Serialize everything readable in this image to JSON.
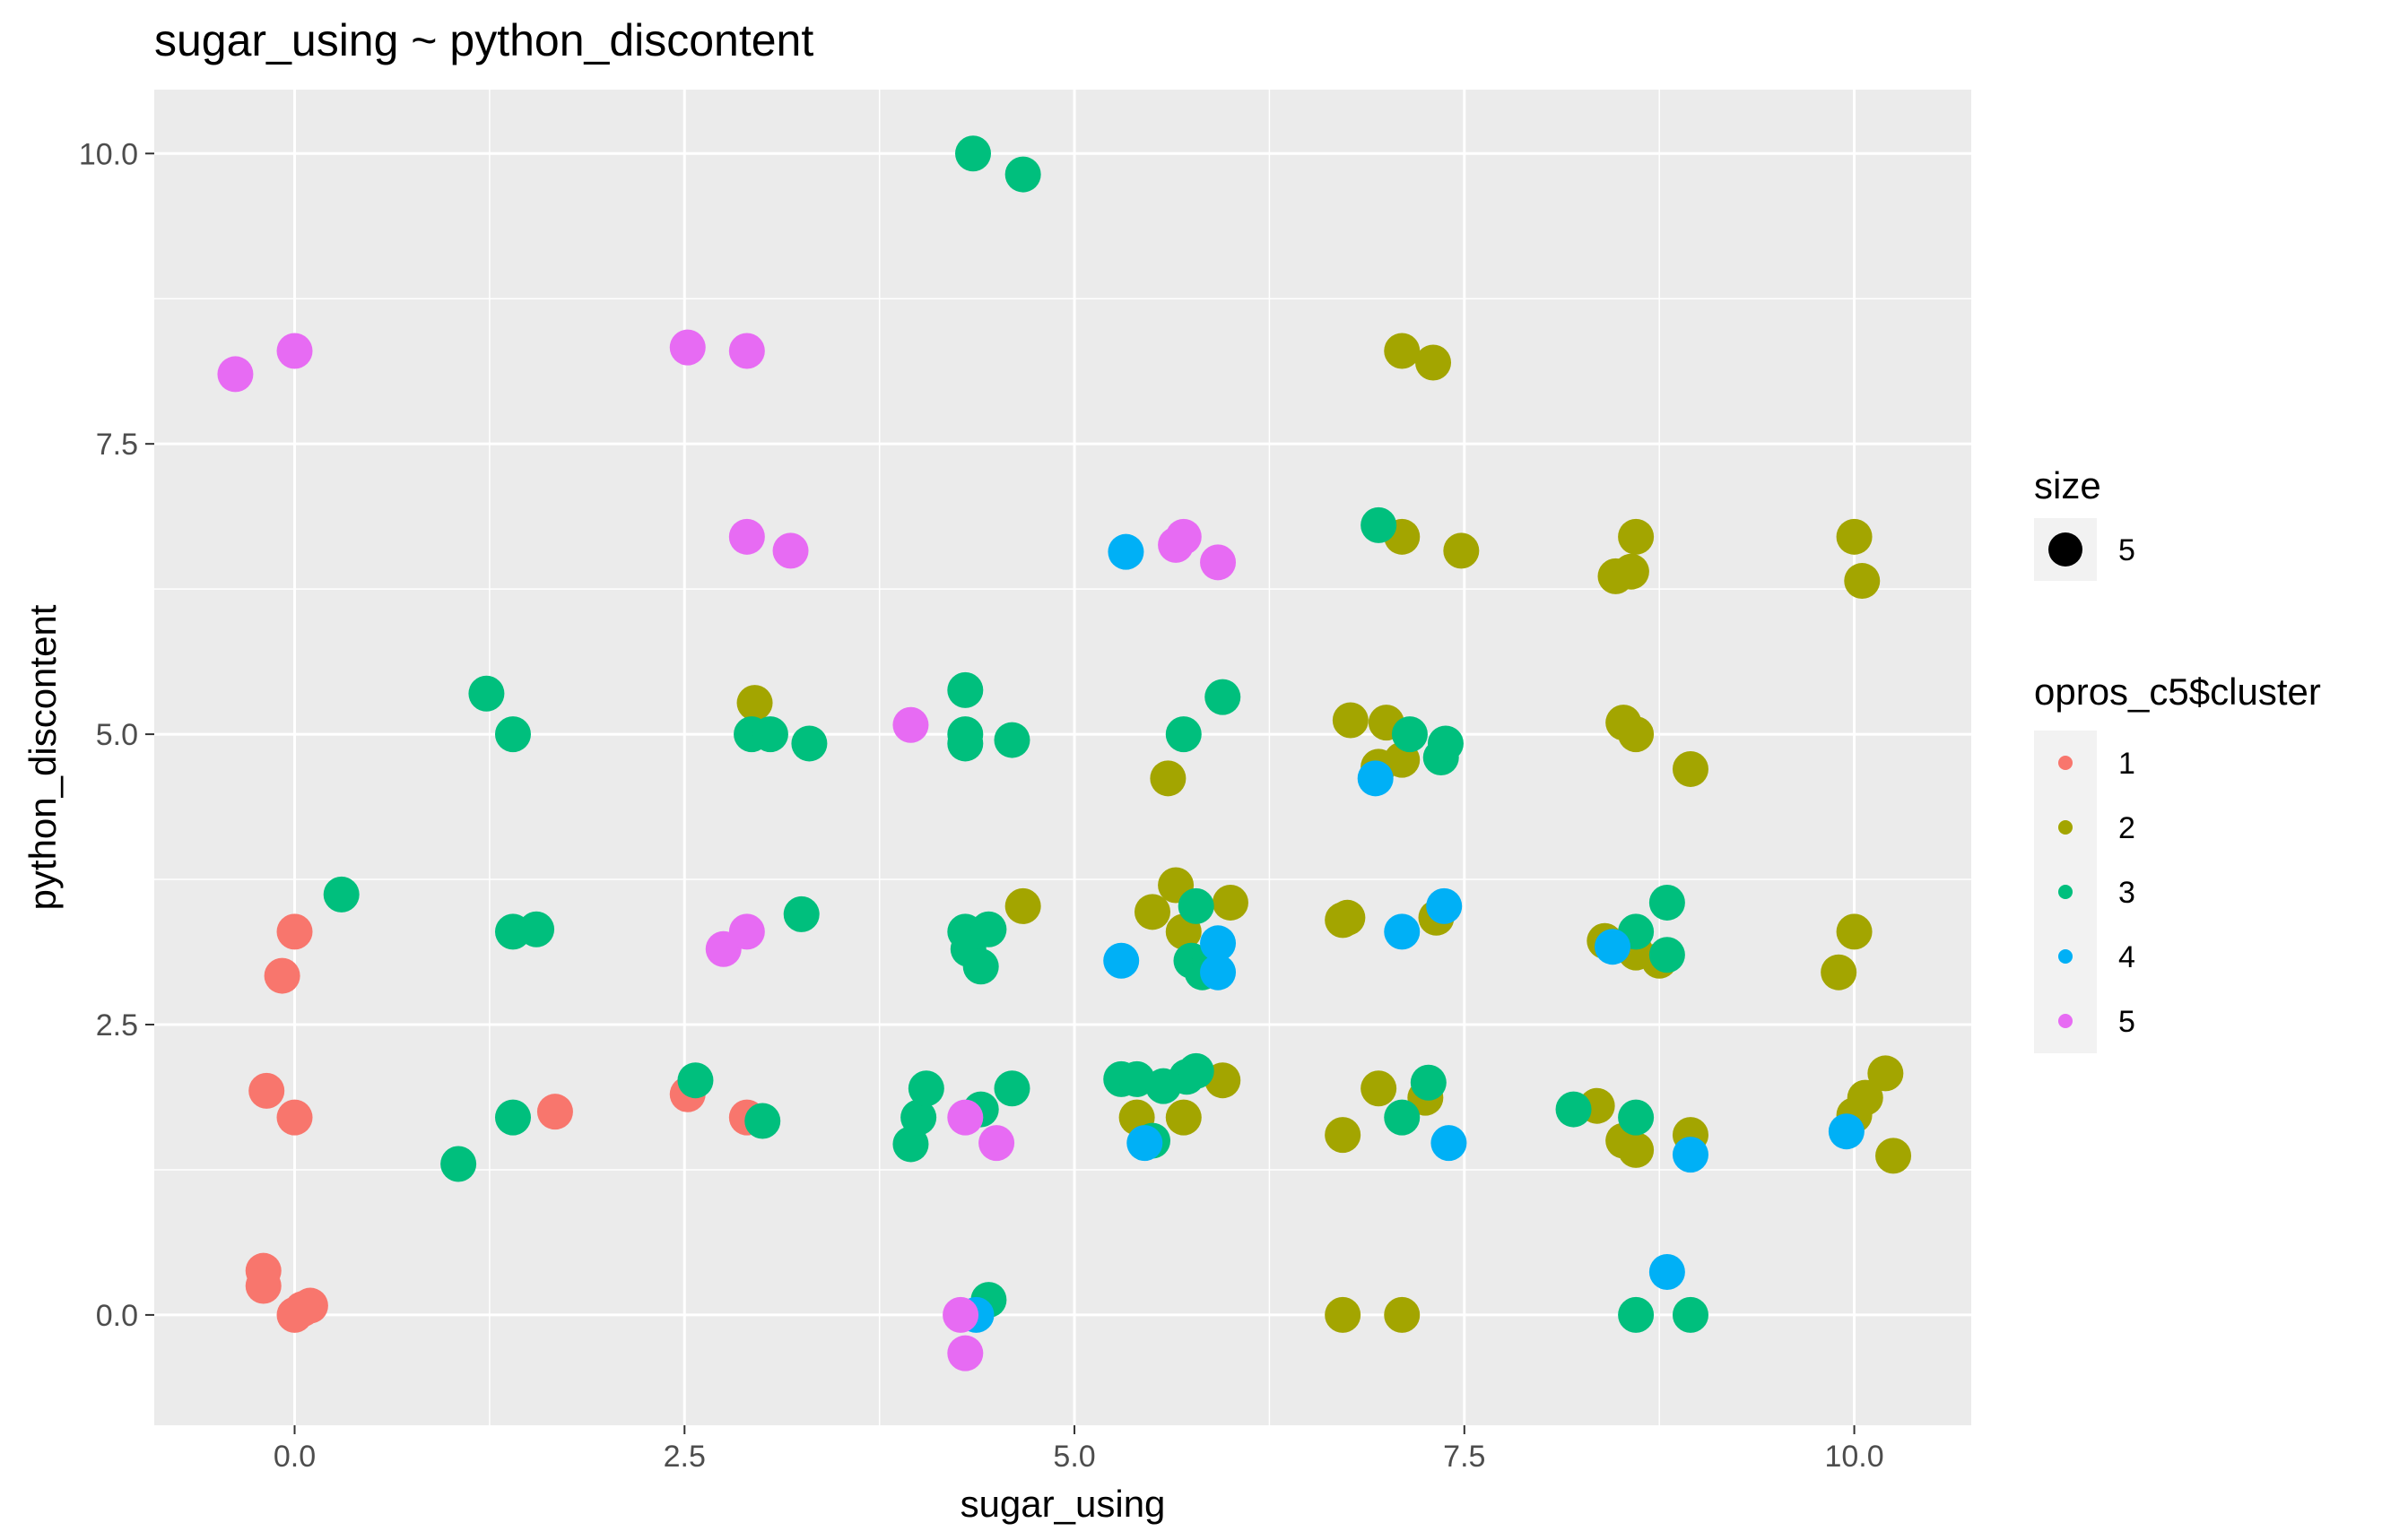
{
  "chart_data": {
    "type": "scatter",
    "title": "sugar_using ~ python_discontent",
    "xlabel": "sugar_using",
    "ylabel": "python_discontent",
    "xlim": [
      -0.9,
      10.75
    ],
    "ylim": [
      -0.95,
      10.55
    ],
    "x_ticks": [
      {
        "value": 0.0,
        "label": "0.0"
      },
      {
        "value": 2.5,
        "label": "2.5"
      },
      {
        "value": 5.0,
        "label": "5.0"
      },
      {
        "value": 7.5,
        "label": "7.5"
      },
      {
        "value": 10.0,
        "label": "10.0"
      }
    ],
    "y_ticks": [
      {
        "value": 0.0,
        "label": "0.0"
      },
      {
        "value": 2.5,
        "label": "2.5"
      },
      {
        "value": 5.0,
        "label": "5.0"
      },
      {
        "value": 7.5,
        "label": "7.5"
      },
      {
        "value": 10.0,
        "label": "10.0"
      }
    ],
    "grid": true,
    "background": "#ebebeb",
    "legend_position": "right",
    "legend": {
      "size": {
        "title": "size",
        "entries": [
          {
            "label": "5"
          }
        ]
      },
      "color": {
        "title": "opros_c5$cluster",
        "entries": [
          "1",
          "2",
          "3",
          "4",
          "5"
        ]
      }
    },
    "series": [
      {
        "name": "1",
        "color": "#f8766d",
        "points": [
          [
            -0.2,
            0.38
          ],
          [
            -0.2,
            0.25
          ],
          [
            0.0,
            0.0
          ],
          [
            0.1,
            0.08
          ],
          [
            0.05,
            0.05
          ],
          [
            -0.18,
            1.93
          ],
          [
            0.0,
            1.7
          ],
          [
            -0.08,
            2.92
          ],
          [
            0.0,
            3.3
          ],
          [
            1.67,
            1.75
          ],
          [
            2.52,
            1.9
          ],
          [
            2.9,
            1.7
          ]
        ]
      },
      {
        "name": "2",
        "color": "#a3a500",
        "points": [
          [
            2.95,
            5.27
          ],
          [
            4.67,
            3.52
          ],
          [
            5.4,
            1.7
          ],
          [
            5.5,
            3.47
          ],
          [
            5.6,
            4.62
          ],
          [
            5.65,
            3.7
          ],
          [
            5.7,
            1.7
          ],
          [
            5.7,
            3.3
          ],
          [
            5.95,
            2.02
          ],
          [
            6.0,
            3.55
          ],
          [
            6.72,
            0.0
          ],
          [
            6.72,
            1.55
          ],
          [
            6.72,
            3.4
          ],
          [
            6.75,
            3.42
          ],
          [
            6.77,
            5.12
          ],
          [
            6.95,
            1.95
          ],
          [
            6.95,
            4.72
          ],
          [
            7.0,
            5.1
          ],
          [
            7.1,
            0.0
          ],
          [
            7.1,
            4.78
          ],
          [
            7.1,
            6.7
          ],
          [
            7.1,
            8.3
          ],
          [
            7.25,
            1.87
          ],
          [
            7.3,
            8.2
          ],
          [
            7.32,
            3.42
          ],
          [
            7.48,
            6.58
          ],
          [
            8.35,
            1.8
          ],
          [
            8.4,
            3.22
          ],
          [
            8.47,
            6.36
          ],
          [
            8.52,
            1.5
          ],
          [
            8.52,
            5.1
          ],
          [
            8.57,
            6.4
          ],
          [
            8.6,
            1.42
          ],
          [
            8.6,
            3.12
          ],
          [
            8.6,
            5.0
          ],
          [
            8.6,
            6.7
          ],
          [
            8.75,
            3.05
          ],
          [
            8.95,
            1.55
          ],
          [
            8.95,
            4.7
          ],
          [
            9.9,
            2.95
          ],
          [
            10.0,
            1.72
          ],
          [
            10.0,
            3.3
          ],
          [
            10.0,
            6.7
          ],
          [
            10.05,
            6.32
          ],
          [
            10.07,
            1.87
          ],
          [
            10.2,
            2.08
          ],
          [
            10.25,
            1.37
          ]
        ]
      },
      {
        "name": "3",
        "color": "#00bf7d",
        "points": [
          [
            0.3,
            3.62
          ],
          [
            1.05,
            1.3
          ],
          [
            1.23,
            5.35
          ],
          [
            1.4,
            1.7
          ],
          [
            1.4,
            3.3
          ],
          [
            1.4,
            5.0
          ],
          [
            1.55,
            3.32
          ],
          [
            2.57,
            2.02
          ],
          [
            2.93,
            5.0
          ],
          [
            3.0,
            1.67
          ],
          [
            3.05,
            5.0
          ],
          [
            3.25,
            3.45
          ],
          [
            3.3,
            4.92
          ],
          [
            3.95,
            1.47
          ],
          [
            4.0,
            1.7
          ],
          [
            4.05,
            1.95
          ],
          [
            4.3,
            3.3
          ],
          [
            4.3,
            4.92
          ],
          [
            4.3,
            5.0
          ],
          [
            4.3,
            5.38
          ],
          [
            4.32,
            3.15
          ],
          [
            4.35,
            10.0
          ],
          [
            4.4,
            3.0
          ],
          [
            4.4,
            1.77
          ],
          [
            4.45,
            0.13
          ],
          [
            4.45,
            3.32
          ],
          [
            4.6,
            1.95
          ],
          [
            4.6,
            4.95
          ],
          [
            4.67,
            9.82
          ],
          [
            5.3,
            2.03
          ],
          [
            5.4,
            2.03
          ],
          [
            5.5,
            1.5
          ],
          [
            5.57,
            1.97
          ],
          [
            5.7,
            5.0
          ],
          [
            5.72,
            2.05
          ],
          [
            5.75,
            3.05
          ],
          [
            5.78,
            3.52
          ],
          [
            5.78,
            2.1
          ],
          [
            5.82,
            2.95
          ],
          [
            5.87,
            3.05
          ],
          [
            5.95,
            5.32
          ],
          [
            6.95,
            6.8
          ],
          [
            7.1,
            1.7
          ],
          [
            7.15,
            5.0
          ],
          [
            7.27,
            2.0
          ],
          [
            7.35,
            4.8
          ],
          [
            7.38,
            4.92
          ],
          [
            8.2,
            1.77
          ],
          [
            8.6,
            0.0
          ],
          [
            8.6,
            3.3
          ],
          [
            8.6,
            1.7
          ],
          [
            8.8,
            3.1
          ],
          [
            8.8,
            3.55
          ],
          [
            8.95,
            0.0
          ]
        ]
      },
      {
        "name": "4",
        "color": "#00b0f6",
        "points": [
          [
            4.37,
            0.0
          ],
          [
            5.3,
            3.05
          ],
          [
            5.33,
            6.57
          ],
          [
            5.45,
            1.48
          ],
          [
            5.92,
            3.2
          ],
          [
            5.92,
            2.95
          ],
          [
            6.93,
            4.62
          ],
          [
            7.1,
            3.3
          ],
          [
            7.37,
            3.52
          ],
          [
            7.4,
            1.48
          ],
          [
            8.45,
            3.17
          ],
          [
            8.8,
            0.37
          ],
          [
            8.95,
            1.38
          ],
          [
            9.95,
            1.58
          ]
        ]
      },
      {
        "name": "5",
        "color": "#e76bf3",
        "points": [
          [
            -0.38,
            8.1
          ],
          [
            0.0,
            8.3
          ],
          [
            2.52,
            8.33
          ],
          [
            2.9,
            8.3
          ],
          [
            2.75,
            3.15
          ],
          [
            2.9,
            3.3
          ],
          [
            2.9,
            6.7
          ],
          [
            3.18,
            6.58
          ],
          [
            3.95,
            5.08
          ],
          [
            4.27,
            0.0
          ],
          [
            4.3,
            -0.33
          ],
          [
            4.3,
            1.7
          ],
          [
            4.5,
            1.48
          ],
          [
            5.65,
            6.63
          ],
          [
            5.7,
            6.7
          ],
          [
            5.92,
            6.48
          ]
        ]
      }
    ]
  }
}
